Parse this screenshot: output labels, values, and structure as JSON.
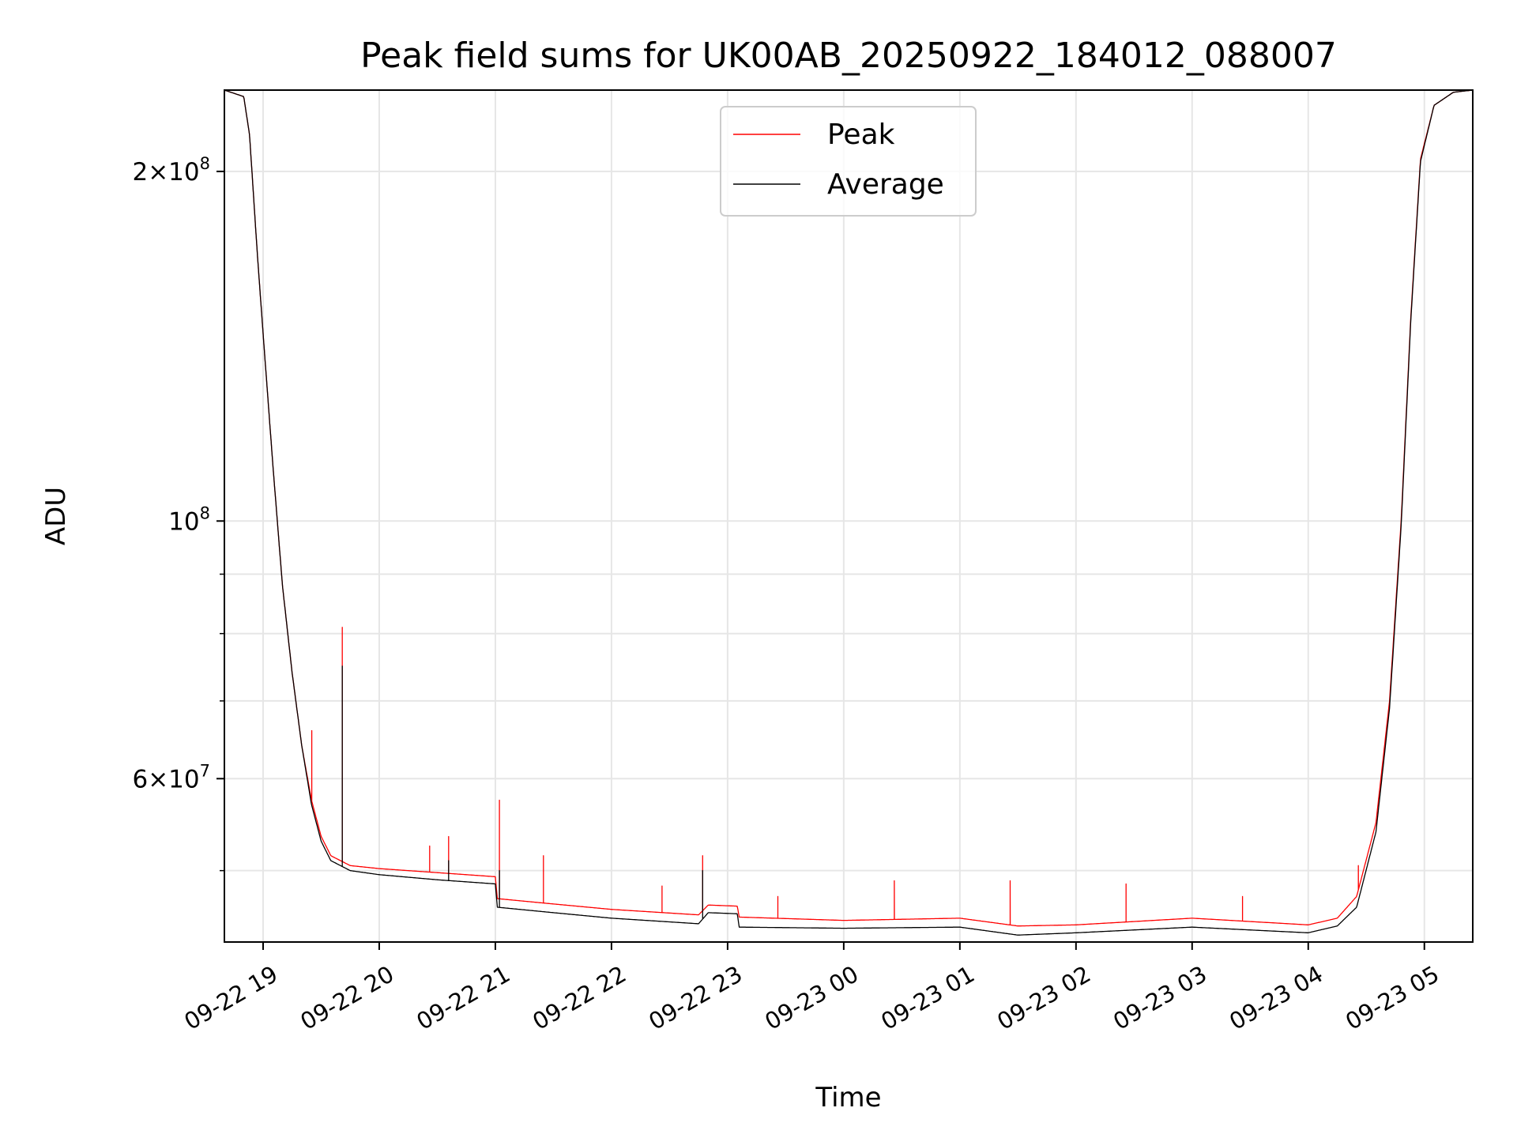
{
  "chart_data": {
    "type": "line",
    "title": "Peak field sums for UK00AB_20250922_184012_088007",
    "xlabel": "Time",
    "ylabel": "ADU",
    "yscale": "log",
    "ylim": [
      43400000,
      235000000
    ],
    "xlim": [
      "09-22 18:40",
      "09-23 05:25"
    ],
    "grid": true,
    "legend_placement": "top-center",
    "x_ticks": [
      "09-22 19",
      "09-22 20",
      "09-22 21",
      "09-22 22",
      "09-22 23",
      "09-23 00",
      "09-23 01",
      "09-23 02",
      "09-23 03",
      "09-23 04",
      "09-23 05"
    ],
    "y_ticks": [
      {
        "value": 200000000,
        "mant": "2",
        "exp": "8"
      },
      {
        "value": 100000000,
        "mant": "",
        "exp": "8"
      },
      {
        "value": 60000000,
        "mant": "6",
        "exp": "7"
      }
    ],
    "y_minor_ticks": [
      50000000,
      70000000,
      80000000,
      90000000
    ],
    "series": [
      {
        "name": "Peak",
        "color": "#ff0000",
        "points": [
          [
            "09-22 18:40",
            235000000
          ],
          [
            "09-22 18:50",
            232000000
          ],
          [
            "09-22 18:53",
            215000000
          ],
          [
            "09-22 18:57",
            170000000
          ],
          [
            "09-22 19:00",
            145000000
          ],
          [
            "09-22 19:05",
            112000000
          ],
          [
            "09-22 19:10",
            88000000
          ],
          [
            "09-22 19:15",
            74000000
          ],
          [
            "09-22 19:20",
            64000000
          ],
          [
            "09-22 19:25",
            57500000
          ],
          [
            "09-22 19:30",
            53500000
          ],
          [
            "09-22 19:35",
            51500000
          ],
          [
            "09-22 19:45",
            50500000
          ],
          [
            "09-22 20:00",
            50200000
          ],
          [
            "09-22 20:30",
            49800000
          ],
          [
            "09-22 21:00",
            49400000
          ],
          [
            "09-22 21:01",
            47300000
          ],
          [
            "09-22 21:30",
            46800000
          ],
          [
            "09-22 22:00",
            46300000
          ],
          [
            "09-22 22:45",
            45800000
          ],
          [
            "09-22 22:50",
            46700000
          ],
          [
            "09-22 23:05",
            46600000
          ],
          [
            "09-22 23:06",
            45600000
          ],
          [
            "09-23 00:00",
            45300000
          ],
          [
            "09-23 01:00",
            45500000
          ],
          [
            "09-23 01:30",
            44800000
          ],
          [
            "09-23 02:00",
            44900000
          ],
          [
            "09-23 03:00",
            45500000
          ],
          [
            "09-23 04:00",
            44900000
          ],
          [
            "09-23 04:15",
            45500000
          ],
          [
            "09-23 04:25",
            47500000
          ],
          [
            "09-23 04:35",
            55000000
          ],
          [
            "09-23 04:42",
            70000000
          ],
          [
            "09-23 04:48",
            100000000
          ],
          [
            "09-23 04:53",
            150000000
          ],
          [
            "09-23 04:58",
            205000000
          ],
          [
            "09-23 05:05",
            228000000
          ],
          [
            "09-23 05:15",
            234000000
          ],
          [
            "09-23 05:25",
            235000000
          ]
        ],
        "spikes": [
          [
            "09-22 19:25",
            66000000
          ],
          [
            "09-22 19:41",
            81000000
          ],
          [
            "09-22 20:26",
            52500000
          ],
          [
            "09-22 20:36",
            53500000
          ],
          [
            "09-22 21:02",
            57500000
          ],
          [
            "09-22 21:25",
            51500000
          ],
          [
            "09-22 22:26",
            48500000
          ],
          [
            "09-22 22:47",
            51500000
          ],
          [
            "09-22 23:26",
            47500000
          ],
          [
            "09-23 00:26",
            49000000
          ],
          [
            "09-23 01:26",
            49000000
          ],
          [
            "09-23 02:26",
            48700000
          ],
          [
            "09-23 03:26",
            47500000
          ],
          [
            "09-23 04:26",
            50500000
          ]
        ]
      },
      {
        "name": "Average",
        "color": "#000000",
        "points": [
          [
            "09-22 18:40",
            235000000
          ],
          [
            "09-22 18:50",
            232000000
          ],
          [
            "09-22 18:53",
            215000000
          ],
          [
            "09-22 18:57",
            170000000
          ],
          [
            "09-22 19:00",
            145000000
          ],
          [
            "09-22 19:05",
            112000000
          ],
          [
            "09-22 19:10",
            88000000
          ],
          [
            "09-22 19:15",
            74000000
          ],
          [
            "09-22 19:20",
            64000000
          ],
          [
            "09-22 19:25",
            57000000
          ],
          [
            "09-22 19:30",
            53000000
          ],
          [
            "09-22 19:35",
            51000000
          ],
          [
            "09-22 19:45",
            50000000
          ],
          [
            "09-22 20:00",
            49600000
          ],
          [
            "09-22 20:30",
            49100000
          ],
          [
            "09-22 21:00",
            48700000
          ],
          [
            "09-22 21:01",
            46500000
          ],
          [
            "09-22 21:30",
            46000000
          ],
          [
            "09-22 22:00",
            45500000
          ],
          [
            "09-22 22:45",
            45000000
          ],
          [
            "09-22 22:50",
            46000000
          ],
          [
            "09-22 23:05",
            45900000
          ],
          [
            "09-22 23:06",
            44700000
          ],
          [
            "09-23 00:00",
            44600000
          ],
          [
            "09-23 01:00",
            44700000
          ],
          [
            "09-23 01:30",
            44000000
          ],
          [
            "09-23 02:00",
            44200000
          ],
          [
            "09-23 03:00",
            44700000
          ],
          [
            "09-23 04:00",
            44200000
          ],
          [
            "09-23 04:15",
            44800000
          ],
          [
            "09-23 04:25",
            46500000
          ],
          [
            "09-23 04:35",
            54000000
          ],
          [
            "09-23 04:42",
            69000000
          ],
          [
            "09-23 04:48",
            99000000
          ],
          [
            "09-23 04:53",
            149000000
          ],
          [
            "09-23 04:58",
            204000000
          ],
          [
            "09-23 05:05",
            228000000
          ],
          [
            "09-23 05:15",
            234000000
          ],
          [
            "09-23 05:25",
            235000000
          ]
        ],
        "spikes": [
          [
            "09-22 19:41",
            75000000
          ],
          [
            "09-22 20:36",
            51000000
          ],
          [
            "09-22 21:02",
            50000000
          ],
          [
            "09-22 22:47",
            50000000
          ]
        ]
      }
    ]
  }
}
